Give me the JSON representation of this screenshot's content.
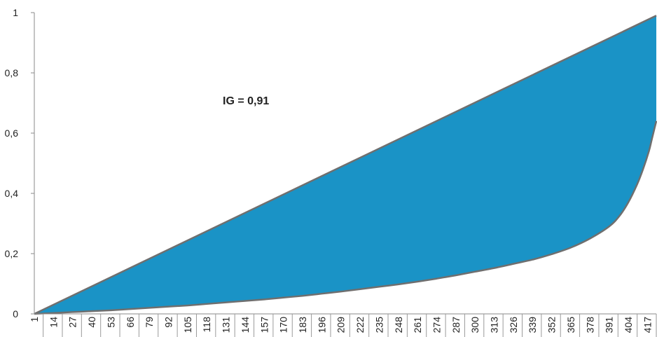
{
  "chart_data": {
    "type": "area",
    "annotation": "IG = 0,91",
    "fill_color": "#1a93c6",
    "line_color": "#6f6f6f",
    "ylim": [
      0,
      1
    ],
    "yticks": [
      "0",
      "0,2",
      "0,4",
      "0,6",
      "0,8",
      "1"
    ],
    "yticks_values": [
      0,
      0.2,
      0.4,
      0.6,
      0.8,
      1
    ],
    "xlim": [
      1,
      423
    ],
    "xticks": [
      1,
      14,
      27,
      40,
      53,
      66,
      79,
      92,
      105,
      118,
      131,
      144,
      157,
      170,
      183,
      196,
      209,
      222,
      235,
      248,
      261,
      274,
      287,
      300,
      313,
      326,
      339,
      352,
      365,
      378,
      391,
      404,
      417
    ],
    "series": [
      {
        "x": [
          1,
          423
        ],
        "y": [
          0,
          0.99
        ]
      },
      {
        "x": [
          1,
          14,
          27,
          40,
          53,
          66,
          79,
          92,
          105,
          118,
          131,
          144,
          157,
          170,
          183,
          196,
          209,
          222,
          235,
          248,
          261,
          274,
          287,
          300,
          313,
          326,
          339,
          352,
          365,
          378,
          391,
          398,
          404,
          410,
          414,
          418,
          420,
          423
        ],
        "y": [
          0,
          0.003,
          0.006,
          0.009,
          0.012,
          0.016,
          0.02,
          0.024,
          0.028,
          0.033,
          0.038,
          0.043,
          0.048,
          0.054,
          0.06,
          0.067,
          0.074,
          0.082,
          0.09,
          0.098,
          0.107,
          0.117,
          0.128,
          0.14,
          0.152,
          0.166,
          0.18,
          0.198,
          0.22,
          0.25,
          0.29,
          0.325,
          0.37,
          0.43,
          0.48,
          0.54,
          0.58,
          0.64
        ]
      }
    ]
  }
}
